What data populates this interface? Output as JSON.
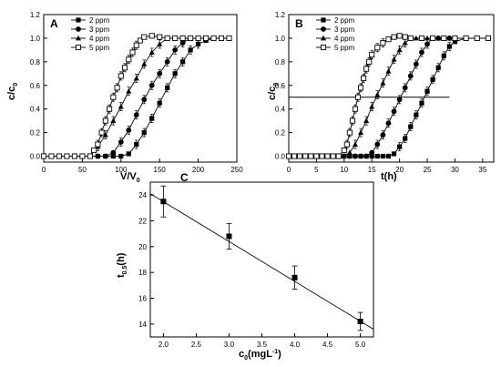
{
  "chart_data": [
    {
      "id": "A",
      "type": "line",
      "panel_label": "A",
      "xlabel": {
        "main": "V/V",
        "sub": "0"
      },
      "ylabel": {
        "main": "c/c",
        "sub": "0"
      },
      "xlim": [
        0,
        250
      ],
      "ylim": [
        -0.05,
        1.2
      ],
      "xticks": [
        0,
        50,
        100,
        150,
        200,
        250
      ],
      "yticks": [
        0.0,
        0.2,
        0.4,
        0.6,
        0.8,
        1.0,
        1.2
      ],
      "ytick_labels": [
        "0.0",
        "0.2",
        "0.4",
        "0.6",
        "0.8",
        "1.0",
        "1.2"
      ],
      "legend_position": "top-left",
      "series": [
        {
          "name": "2 ppm",
          "marker": "square-filled",
          "x": [
            0,
            10,
            20,
            30,
            40,
            50,
            60,
            70,
            80,
            90,
            100,
            110,
            120,
            130,
            140,
            150,
            160,
            170,
            180,
            190,
            200,
            210,
            220,
            230,
            240
          ],
          "y": [
            0,
            0,
            0,
            0,
            0,
            0,
            0,
            0,
            0,
            0,
            0,
            0.02,
            0.1,
            0.2,
            0.32,
            0.45,
            0.58,
            0.7,
            0.8,
            0.9,
            0.95,
            0.98,
            1.0,
            1.0,
            1.0
          ]
        },
        {
          "name": "3 ppm",
          "marker": "circle-filled",
          "x": [
            0,
            10,
            20,
            30,
            40,
            50,
            60,
            70,
            80,
            90,
            100,
            110,
            120,
            130,
            140,
            150,
            160,
            170,
            180,
            190,
            200,
            210,
            220,
            230,
            240
          ],
          "y": [
            0,
            0,
            0,
            0,
            0,
            0,
            0,
            0,
            0,
            0.03,
            0.12,
            0.22,
            0.35,
            0.48,
            0.6,
            0.7,
            0.8,
            0.9,
            0.96,
            1.0,
            1.0,
            1.0,
            1.0,
            1.0,
            1.0
          ]
        },
        {
          "name": "4 ppm",
          "marker": "triangle-filled",
          "x": [
            0,
            10,
            20,
            30,
            40,
            50,
            60,
            70,
            80,
            90,
            100,
            110,
            120,
            130,
            140,
            150,
            160,
            170,
            180,
            190,
            200,
            210,
            220,
            230,
            240
          ],
          "y": [
            0,
            0,
            0,
            0,
            0,
            0,
            0,
            0.08,
            0.18,
            0.3,
            0.42,
            0.55,
            0.66,
            0.78,
            0.88,
            0.95,
            1.0,
            1.0,
            1.0,
            1.0,
            1.0,
            1.0,
            1.0,
            1.0,
            1.0
          ]
        },
        {
          "name": "5 ppm",
          "marker": "square-open",
          "x": [
            0,
            10,
            20,
            30,
            40,
            50,
            60,
            65,
            70,
            75,
            80,
            85,
            90,
            95,
            100,
            105,
            110,
            115,
            120,
            125,
            130,
            140,
            150,
            160,
            170,
            180,
            190,
            200,
            210,
            220,
            230,
            240
          ],
          "y": [
            0,
            0,
            0,
            0,
            0,
            0,
            0,
            0.05,
            0.1,
            0.2,
            0.3,
            0.4,
            0.5,
            0.58,
            0.68,
            0.75,
            0.82,
            0.88,
            0.94,
            0.98,
            1.01,
            1.02,
            1.01,
            1.0,
            1.0,
            1.0,
            1.0,
            1.0,
            1.0,
            1.0,
            1.0,
            1.0
          ]
        }
      ]
    },
    {
      "id": "B",
      "type": "line",
      "panel_label": "B",
      "xlabel": {
        "main": "t(h)",
        "sub": ""
      },
      "ylabel": {
        "main": "c/c",
        "sub": "0"
      },
      "xlim": [
        0,
        37
      ],
      "ylim": [
        -0.05,
        1.2
      ],
      "xticks": [
        0,
        5,
        10,
        15,
        20,
        25,
        30,
        35
      ],
      "yticks": [
        0.0,
        0.2,
        0.4,
        0.6,
        0.8,
        1.0,
        1.2
      ],
      "ytick_labels": [
        "0.0",
        "0.2",
        "0.4",
        "0.6",
        "0.8",
        "1.0",
        "1.2"
      ],
      "reference_line_y": 0.5,
      "reference_line_x": [
        0,
        29
      ],
      "legend_position": "top-left",
      "series": [
        {
          "name": "2 ppm",
          "marker": "square-filled",
          "x": [
            0,
            1,
            2,
            3,
            4,
            5,
            6,
            7,
            8,
            9,
            10,
            11,
            12,
            13,
            14,
            15,
            16,
            17,
            18,
            19,
            20,
            21,
            22,
            23,
            24,
            25,
            26,
            27,
            28,
            29,
            30,
            32,
            34,
            36
          ],
          "y": [
            0,
            0,
            0,
            0,
            0,
            0,
            0,
            0,
            0,
            0,
            0,
            0,
            0,
            0,
            0,
            0,
            0,
            0,
            0,
            0.02,
            0.08,
            0.15,
            0.25,
            0.35,
            0.45,
            0.55,
            0.65,
            0.75,
            0.85,
            0.93,
            0.97,
            1.0,
            1.0,
            1.0
          ]
        },
        {
          "name": "3 ppm",
          "marker": "circle-filled",
          "x": [
            0,
            1,
            2,
            3,
            4,
            5,
            6,
            7,
            8,
            9,
            10,
            11,
            12,
            13,
            14,
            15,
            16,
            17,
            18,
            19,
            20,
            21,
            22,
            23,
            24,
            25,
            26,
            27,
            28,
            29,
            30,
            32,
            34,
            36
          ],
          "y": [
            0,
            0,
            0,
            0,
            0,
            0,
            0,
            0,
            0,
            0,
            0,
            0,
            0,
            0,
            0,
            0.03,
            0.1,
            0.18,
            0.28,
            0.38,
            0.48,
            0.58,
            0.68,
            0.78,
            0.88,
            0.95,
            1.0,
            1.0,
            1.0,
            1.0,
            1.0,
            1.0,
            1.0,
            1.0
          ]
        },
        {
          "name": "4 ppm",
          "marker": "triangle-filled",
          "x": [
            0,
            1,
            2,
            3,
            4,
            5,
            6,
            7,
            8,
            9,
            10,
            11,
            12,
            13,
            14,
            15,
            16,
            17,
            18,
            19,
            20,
            21,
            22,
            23,
            24,
            25,
            26,
            27,
            28,
            29,
            30,
            32,
            34,
            36
          ],
          "y": [
            0,
            0,
            0,
            0,
            0,
            0,
            0,
            0,
            0,
            0,
            0,
            0.03,
            0.1,
            0.2,
            0.3,
            0.42,
            0.52,
            0.62,
            0.72,
            0.82,
            0.9,
            0.96,
            1.0,
            1.0,
            1.0,
            1.0,
            1.0,
            1.0,
            1.0,
            1.0,
            1.0,
            1.0,
            1.0,
            1.0
          ]
        },
        {
          "name": "5 ppm",
          "marker": "square-open",
          "x": [
            0,
            1,
            2,
            3,
            4,
            5,
            6,
            7,
            8,
            9,
            10,
            10.5,
            11,
            11.5,
            12,
            12.5,
            13,
            13.5,
            14,
            14.5,
            15,
            16,
            17,
            18,
            19,
            20,
            21,
            22,
            24,
            26,
            28,
            30,
            32,
            34,
            36
          ],
          "y": [
            0,
            0,
            0,
            0,
            0,
            0,
            0,
            0,
            0,
            0,
            0.05,
            0.1,
            0.2,
            0.3,
            0.4,
            0.5,
            0.58,
            0.66,
            0.74,
            0.8,
            0.86,
            0.92,
            0.96,
            0.99,
            1.01,
            1.02,
            1.01,
            1.0,
            1.0,
            1.0,
            1.0,
            1.0,
            1.0,
            1.0,
            1.0
          ]
        }
      ]
    },
    {
      "id": "C",
      "type": "scatter",
      "panel_label": "C",
      "xlabel": {
        "main": "c",
        "sub": "0",
        "rest": "(mgL",
        "sup": "-1",
        "close": ")"
      },
      "ylabel": {
        "main": "t",
        "sub": "0.5",
        "rest": "(h)"
      },
      "xlim": [
        1.8,
        5.2
      ],
      "ylim": [
        13,
        25
      ],
      "xticks": [
        2.0,
        2.5,
        3.0,
        3.5,
        4.0,
        4.5,
        5.0
      ],
      "xtick_labels": [
        "2.0",
        "2.5",
        "3.0",
        "3.5",
        "4.0",
        "4.5",
        "5.0"
      ],
      "yticks": [
        14,
        16,
        18,
        20,
        22,
        24
      ],
      "ytick_labels": [
        "14",
        "16",
        "18",
        "20",
        "22",
        "24"
      ],
      "points": [
        {
          "x": 2.0,
          "y": 23.5,
          "err": 1.2
        },
        {
          "x": 3.0,
          "y": 20.8,
          "err": 1.0
        },
        {
          "x": 4.0,
          "y": 17.6,
          "err": 0.9
        },
        {
          "x": 5.0,
          "y": 14.2,
          "err": 0.7
        }
      ],
      "fit_line": {
        "x": [
          1.8,
          5.2
        ],
        "y": [
          24.1,
          13.6
        ]
      }
    }
  ]
}
